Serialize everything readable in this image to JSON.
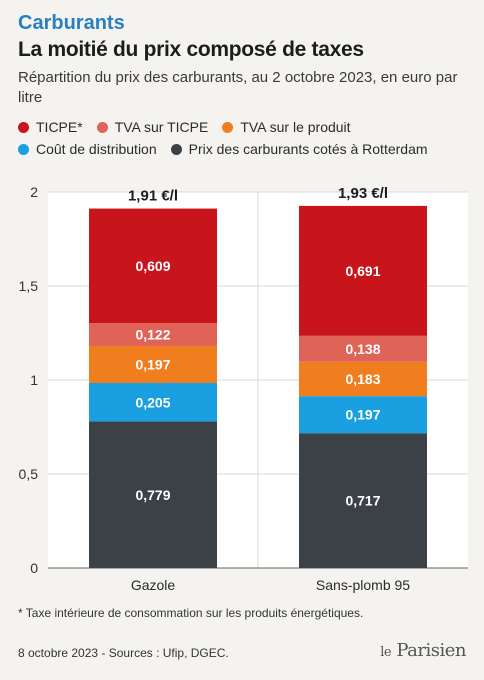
{
  "header": {
    "kicker": "Carburants",
    "title": "La moitié du prix composé de taxes",
    "subtitle": "Répartition du prix des carburants, au 2 octobre 2023, en euro par litre"
  },
  "legend": [
    {
      "label": "TICPE*",
      "color": "#c8151b"
    },
    {
      "label": "TVA sur TICPE",
      "color": "#e06358"
    },
    {
      "label": "TVA sur le produit",
      "color": "#f07d1e"
    },
    {
      "label": "Coût de distribution",
      "color": "#1a9fe0"
    },
    {
      "label": "Prix des carburants cotés à Rotterdam",
      "color": "#3b4146"
    }
  ],
  "chart_data": {
    "type": "bar",
    "stacked": true,
    "categories": [
      "Gazole",
      "Sans-plomb 95"
    ],
    "totals": [
      "1,91 €/l",
      "1,93 €/l"
    ],
    "series": [
      {
        "name": "Prix des carburants cotés à Rotterdam",
        "color": "#3b4146",
        "values": [
          0.779,
          0.717
        ],
        "labels": [
          "0,779",
          "0,717"
        ]
      },
      {
        "name": "Coût de distribution",
        "color": "#1a9fe0",
        "values": [
          0.205,
          0.197
        ],
        "labels": [
          "0,205",
          "0,197"
        ]
      },
      {
        "name": "TVA sur le produit",
        "color": "#f07d1e",
        "values": [
          0.197,
          0.183
        ],
        "labels": [
          "0,197",
          "0,183"
        ]
      },
      {
        "name": "TVA sur TICPE",
        "color": "#e06358",
        "values": [
          0.122,
          0.138
        ],
        "labels": [
          "0,122",
          "0,138"
        ]
      },
      {
        "name": "TICPE*",
        "color": "#c8151b",
        "values": [
          0.609,
          0.691
        ],
        "labels": [
          "0,609",
          "0,691"
        ]
      }
    ],
    "ylim": [
      0,
      2
    ],
    "yticks": [
      0,
      0.5,
      1,
      1.5,
      2
    ],
    "ytick_labels": [
      "0",
      "0,5",
      "1",
      "1,5",
      "2"
    ],
    "grid": true
  },
  "footnote": "* Taxe intérieure de consommation sur les produits énergétiques.",
  "source": "8 octobre 2023 - Sources : Ufip, DGEC.",
  "logo": {
    "prefix": "le",
    "name": "Parisien"
  }
}
